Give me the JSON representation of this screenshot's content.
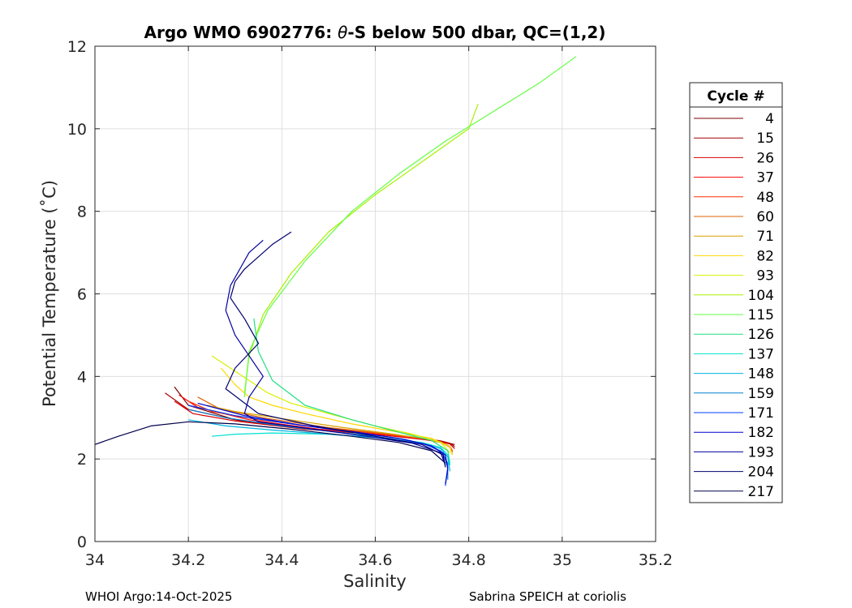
{
  "chart_data": {
    "type": "line",
    "title_prefix": "Argo WMO 6902776: ",
    "title_theta": "θ",
    "title_suffix": "-S below 500 dbar,  QC=(1,2)",
    "xlabel": "Salinity",
    "ylabel": "Potential Temperature (˚C)",
    "xlim": [
      34,
      35.2
    ],
    "ylim": [
      0,
      12
    ],
    "xticks": [
      "34",
      "34.2",
      "34.4",
      "34.6",
      "34.8",
      "35",
      "35.2"
    ],
    "yticks": [
      "0",
      "2",
      "4",
      "6",
      "8",
      "10",
      "12"
    ],
    "grid": true,
    "legend_title": "Cycle #",
    "legend_placement": "right-outside",
    "series": [
      {
        "name": "4",
        "color": "#7f0000",
        "x": [
          34.17,
          34.2,
          34.3,
          34.45,
          34.6,
          34.68,
          34.72,
          34.75,
          34.77
        ],
        "y": [
          3.75,
          3.3,
          2.95,
          2.75,
          2.6,
          2.5,
          2.45,
          2.4,
          2.35
        ]
      },
      {
        "name": "15",
        "color": "#a80000",
        "x": [
          34.15,
          34.2,
          34.32,
          34.48,
          34.62,
          34.7,
          34.74,
          34.76,
          34.77
        ],
        "y": [
          3.6,
          3.2,
          2.9,
          2.7,
          2.58,
          2.5,
          2.44,
          2.38,
          2.3
        ]
      },
      {
        "name": "26",
        "color": "#d40000",
        "x": [
          34.17,
          34.21,
          34.3,
          34.45,
          34.6,
          34.68,
          34.73,
          34.76,
          34.77
        ],
        "y": [
          3.4,
          3.1,
          2.92,
          2.72,
          2.6,
          2.52,
          2.45,
          2.36,
          2.25
        ]
      },
      {
        "name": "37",
        "color": "#ff0000",
        "x": [
          34.18,
          34.22,
          34.33,
          34.48,
          34.62,
          34.7,
          34.74,
          34.76,
          34.765
        ],
        "y": [
          3.55,
          3.25,
          2.95,
          2.72,
          2.58,
          2.48,
          2.4,
          2.3,
          2.2
        ]
      },
      {
        "name": "48",
        "color": "#ff3000",
        "x": [
          34.2,
          34.25,
          34.35,
          34.5,
          34.62,
          34.7,
          34.74,
          34.76,
          34.765
        ],
        "y": [
          3.4,
          3.15,
          2.95,
          2.74,
          2.6,
          2.5,
          2.42,
          2.3,
          2.18
        ]
      },
      {
        "name": "60",
        "color": "#e06000",
        "x": [
          34.22,
          34.27,
          34.37,
          34.5,
          34.63,
          34.7,
          34.74,
          34.76,
          34.765
        ],
        "y": [
          3.5,
          3.2,
          2.98,
          2.76,
          2.6,
          2.5,
          2.42,
          2.3,
          2.15
        ]
      },
      {
        "name": "71",
        "color": "#d8a000",
        "x": [
          34.24,
          34.3,
          34.4,
          34.52,
          34.64,
          34.7,
          34.74,
          34.76,
          34.765
        ],
        "y": [
          3.3,
          3.15,
          2.98,
          2.78,
          2.6,
          2.5,
          2.4,
          2.28,
          2.1
        ]
      },
      {
        "name": "82",
        "color": "#ffd800",
        "x": [
          34.27,
          34.3,
          34.33,
          34.38,
          34.45,
          34.55,
          34.65,
          34.72,
          34.76,
          34.765
        ],
        "y": [
          4.2,
          3.8,
          3.5,
          3.3,
          3.1,
          2.85,
          2.65,
          2.5,
          2.3,
          2.1
        ]
      },
      {
        "name": "93",
        "color": "#d8f000",
        "x": [
          34.25,
          34.29,
          34.33,
          34.37,
          34.42,
          34.5,
          34.6,
          34.68,
          34.74,
          34.76
        ],
        "y": [
          4.5,
          4.2,
          3.9,
          3.6,
          3.35,
          3.1,
          2.8,
          2.6,
          2.4,
          2.15
        ]
      },
      {
        "name": "104",
        "color": "#a8f000",
        "x": [
          34.32,
          34.33,
          34.36,
          34.42,
          34.5,
          34.6,
          34.7,
          34.8,
          34.82
        ],
        "y": [
          3.6,
          4.5,
          5.5,
          6.5,
          7.5,
          8.4,
          9.2,
          10.0,
          10.6
        ]
      },
      {
        "name": "115",
        "color": "#60ff40",
        "x": [
          34.32,
          34.33,
          34.37,
          34.45,
          34.55,
          34.65,
          34.75,
          34.85,
          34.95,
          35.03
        ],
        "y": [
          3.5,
          4.6,
          5.6,
          6.8,
          8.0,
          8.9,
          9.7,
          10.4,
          11.1,
          11.75
        ]
      },
      {
        "name": "126",
        "color": "#20e080",
        "x": [
          34.34,
          34.35,
          34.38,
          34.45,
          34.55,
          34.65,
          34.72,
          34.755,
          34.76
        ],
        "y": [
          5.4,
          4.6,
          3.9,
          3.3,
          2.95,
          2.65,
          2.45,
          2.2,
          1.9
        ]
      },
      {
        "name": "137",
        "color": "#00e0d0",
        "x": [
          34.25,
          34.3,
          34.38,
          34.5,
          34.62,
          34.7,
          34.74,
          34.755,
          34.76
        ],
        "y": [
          2.55,
          2.6,
          2.63,
          2.6,
          2.5,
          2.4,
          2.28,
          2.1,
          1.85
        ]
      },
      {
        "name": "148",
        "color": "#00b4e0",
        "x": [
          34.2,
          34.28,
          34.38,
          34.5,
          34.62,
          34.7,
          34.74,
          34.755,
          34.76
        ],
        "y": [
          2.95,
          2.8,
          2.7,
          2.6,
          2.5,
          2.38,
          2.25,
          2.05,
          1.7
        ]
      },
      {
        "name": "159",
        "color": "#0080d0",
        "x": [
          34.2,
          34.28,
          34.4,
          34.52,
          34.63,
          34.7,
          34.74,
          34.755,
          34.755
        ],
        "y": [
          3.2,
          3.0,
          2.8,
          2.65,
          2.5,
          2.38,
          2.2,
          1.9,
          1.5
        ]
      },
      {
        "name": "171",
        "color": "#0040ff",
        "x": [
          34.2,
          34.3,
          34.42,
          34.55,
          34.65,
          34.71,
          34.745,
          34.755,
          34.75
        ],
        "y": [
          3.3,
          3.05,
          2.85,
          2.65,
          2.5,
          2.35,
          2.15,
          1.8,
          1.35
        ]
      },
      {
        "name": "182",
        "color": "#0000d0",
        "x": [
          34.22,
          34.32,
          34.44,
          34.56,
          34.66,
          34.72,
          34.75,
          34.755,
          34.75
        ],
        "y": [
          3.35,
          3.05,
          2.82,
          2.65,
          2.48,
          2.32,
          2.1,
          1.75,
          1.4
        ]
      },
      {
        "name": "193",
        "color": "#0000a0",
        "x": [
          34.36,
          34.33,
          34.31,
          34.29,
          34.28,
          34.3,
          34.33,
          34.36,
          34.33,
          34.32,
          34.35,
          34.45,
          34.58,
          34.68,
          34.74,
          34.75
        ],
        "y": [
          7.3,
          7.0,
          6.6,
          6.2,
          5.6,
          5.0,
          4.5,
          4.0,
          3.5,
          3.1,
          2.9,
          2.75,
          2.55,
          2.38,
          2.15,
          1.85
        ]
      },
      {
        "name": "204",
        "color": "#000070",
        "x": [
          34.42,
          34.38,
          34.34,
          34.32,
          34.3,
          34.29,
          34.32,
          34.35,
          34.3,
          34.28,
          34.35,
          34.47,
          34.6,
          34.7,
          34.745,
          34.75
        ],
        "y": [
          7.5,
          7.2,
          6.8,
          6.6,
          6.3,
          5.9,
          5.4,
          4.8,
          4.2,
          3.7,
          3.1,
          2.8,
          2.55,
          2.35,
          2.1,
          1.8
        ]
      },
      {
        "name": "217",
        "color": "#00004a",
        "x": [
          34.0,
          34.05,
          34.12,
          34.2,
          34.3,
          34.42,
          34.55,
          34.65,
          34.72,
          34.75
        ],
        "y": [
          2.35,
          2.55,
          2.8,
          2.9,
          2.85,
          2.72,
          2.55,
          2.4,
          2.2,
          1.9
        ]
      }
    ]
  },
  "footer": {
    "left": "WHOI Argo:14-Oct-2025",
    "right": "Sabrina SPEICH at coriolis"
  }
}
